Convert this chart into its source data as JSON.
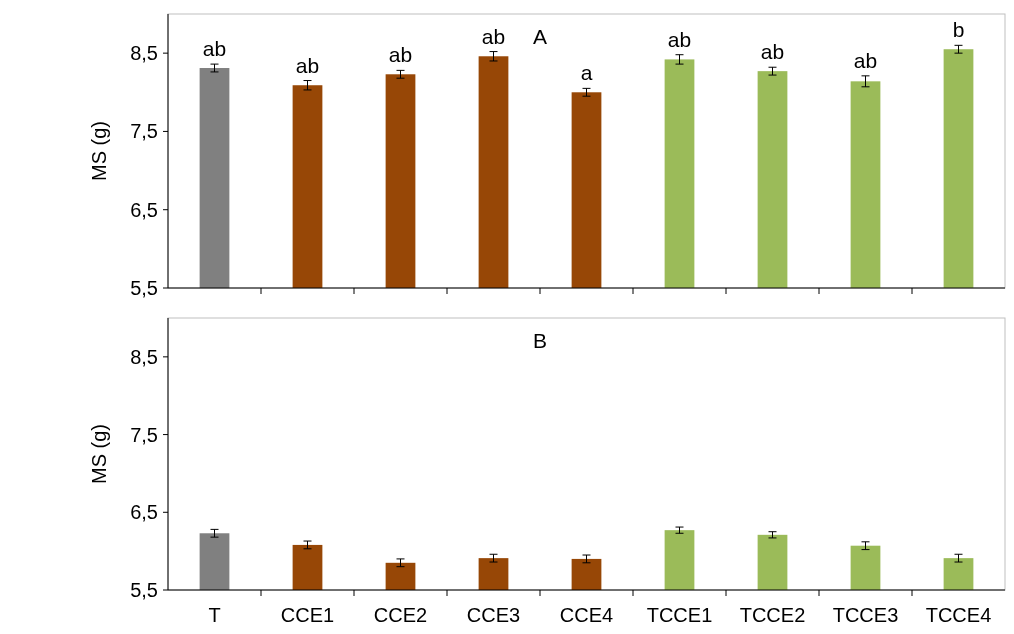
{
  "chart_data": [
    {
      "type": "bar",
      "title": "A",
      "ylabel": "MS (g)",
      "categories": [
        "T",
        "CCE1",
        "CCE2",
        "CCE3",
        "CCE4",
        "TCCE1",
        "TCCE2",
        "TCCE3",
        "TCCE4"
      ],
      "values": [
        8.31,
        8.09,
        8.23,
        8.46,
        8.0,
        8.42,
        8.27,
        8.14,
        8.55
      ],
      "colors": [
        "#808080",
        "#974706",
        "#974706",
        "#974706",
        "#974706",
        "#9bbb59",
        "#9bbb59",
        "#9bbb59",
        "#9bbb59"
      ],
      "errors": [
        0.05,
        0.06,
        0.05,
        0.06,
        0.05,
        0.06,
        0.05,
        0.07,
        0.05
      ],
      "ylim": [
        5.5,
        9
      ],
      "yticks": [
        {
          "value": 5.5,
          "label": "5,5"
        },
        {
          "value": 6.5,
          "label": "6,5"
        },
        {
          "value": 7.5,
          "label": "7,5"
        },
        {
          "value": 8.5,
          "label": "8,5"
        }
      ],
      "tick_labels": "y",
      "annotations": [
        {
          "text": "ab",
          "x": "T",
          "y": 8.36
        },
        {
          "text": "ab",
          "x": "CCE1",
          "y": 8.15
        },
        {
          "text": "ab",
          "x": "CCE2",
          "y": 8.28
        },
        {
          "text": "ab",
          "x": "CCE3",
          "y": 8.52
        },
        {
          "text": "a",
          "x": "CCE4",
          "y": 8.05
        },
        {
          "text": "ab",
          "x": "TCCE1",
          "y": 8.48
        },
        {
          "text": "ab",
          "x": "TCCE2",
          "y": 8.32
        },
        {
          "text": "ab",
          "x": "TCCE3",
          "y": 8.21
        },
        {
          "text": "b",
          "x": "TCCE4",
          "y": 8.6
        }
      ]
    },
    {
      "type": "bar",
      "title": "B",
      "ylabel": "MS (g)",
      "categories": [
        "T",
        "CCE1",
        "CCE2",
        "CCE3",
        "CCE4",
        "TCCE1",
        "TCCE2",
        "TCCE3",
        "TCCE4"
      ],
      "values": [
        6.23,
        6.08,
        5.85,
        5.91,
        5.9,
        6.27,
        6.21,
        6.07,
        5.91
      ],
      "colors": [
        "#808080",
        "#974706",
        "#974706",
        "#974706",
        "#974706",
        "#9bbb59",
        "#9bbb59",
        "#9bbb59",
        "#9bbb59"
      ],
      "errors": [
        0.05,
        0.05,
        0.05,
        0.05,
        0.05,
        0.04,
        0.04,
        0.05,
        0.05
      ],
      "ylim": [
        5.5,
        9
      ],
      "yticks": [
        {
          "value": 5.5,
          "label": "5,5"
        },
        {
          "value": 6.5,
          "label": "6,5"
        },
        {
          "value": 7.5,
          "label": "7,5"
        },
        {
          "value": 8.5,
          "label": "8,5"
        }
      ],
      "tick_labels": "xy"
    }
  ]
}
